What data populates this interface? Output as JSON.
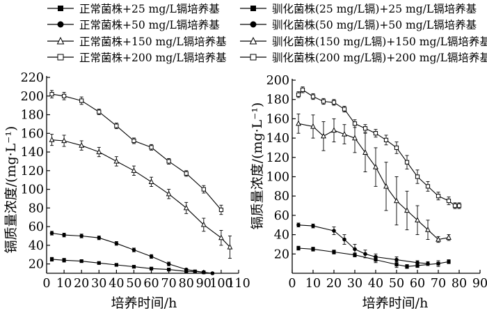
{
  "legend": [
    {
      "label": "正常菌株+25 mg/L镉培养基",
      "marker": "filled-square"
    },
    {
      "label": "驯化菌株(25 mg/L镉)+25 mg/L镉培养基",
      "marker": "filled-square"
    },
    {
      "label": "正常菌株+50 mg/L镉培养基",
      "marker": "filled-circle"
    },
    {
      "label": "驯化菌株(50 mg/L镉)+50 mg/L镉培养基",
      "marker": "filled-circle"
    },
    {
      "label": "正常菌株+150 mg/L镉培养基",
      "marker": "open-triangle"
    },
    {
      "label": "驯化菌株(150 mg/L镉)+150 mg/L镉培养基",
      "marker": "open-triangle"
    },
    {
      "label": "正常菌株+200 mg/L镉培养基",
      "marker": "open-square"
    },
    {
      "label": "驯化菌株(200 mg/L镉)+200 mg/L镉培养基",
      "marker": "open-square"
    }
  ],
  "chart_data": [
    {
      "type": "line",
      "xlabel": "培养时间/h",
      "ylabel": "镉质量浓度/(mg·L⁻¹)",
      "xlim": [
        0,
        110
      ],
      "ylim": [
        10,
        220
      ],
      "xticks": [
        0,
        10,
        20,
        30,
        40,
        50,
        60,
        70,
        80,
        90,
        100,
        110
      ],
      "xtick_labels": [
        "0",
        "10",
        "20",
        "30",
        "40",
        "50",
        "60",
        "70",
        "80",
        "90",
        "100",
        "110"
      ],
      "yticks": [
        20,
        40,
        60,
        80,
        100,
        120,
        140,
        160,
        180,
        200,
        220
      ],
      "series": [
        {
          "name": "正常菌株+25 mg/L镉培养基",
          "marker": "filled-square",
          "x": [
            3,
            10,
            20,
            30,
            40,
            50,
            60,
            70,
            80,
            85,
            90
          ],
          "y": [
            25,
            24,
            23,
            21,
            19,
            17,
            15,
            14,
            12,
            12,
            11
          ],
          "err": [
            2,
            2,
            1,
            1,
            1,
            1,
            1,
            1,
            1,
            1,
            1
          ]
        },
        {
          "name": "正常菌株+50 mg/L镉培养基",
          "marker": "filled-circle",
          "x": [
            3,
            10,
            20,
            30,
            40,
            50,
            60,
            70,
            80,
            90,
            95
          ],
          "y": [
            53,
            51,
            50,
            48,
            42,
            35,
            28,
            20,
            14,
            11,
            10
          ],
          "err": [
            2,
            2,
            2,
            2,
            2,
            2,
            2,
            2,
            1,
            1,
            1
          ]
        },
        {
          "name": "正常菌株+150 mg/L镉培养基",
          "marker": "open-triangle",
          "x": [
            3,
            10,
            20,
            30,
            40,
            50,
            60,
            70,
            80,
            90,
            100,
            105
          ],
          "y": [
            153,
            152,
            147,
            140,
            130,
            120,
            108,
            95,
            80,
            62,
            48,
            38
          ],
          "err": [
            6,
            6,
            5,
            5,
            5,
            5,
            5,
            5,
            6,
            7,
            8,
            12
          ]
        },
        {
          "name": "正常菌株+200 mg/L镉培养基",
          "marker": "open-square",
          "x": [
            3,
            10,
            20,
            30,
            40,
            50,
            60,
            70,
            80,
            90,
            100
          ],
          "y": [
            202,
            200,
            195,
            183,
            168,
            152,
            145,
            130,
            117,
            100,
            78
          ],
          "err": [
            4,
            4,
            4,
            3,
            3,
            3,
            3,
            3,
            3,
            4,
            5
          ]
        }
      ]
    },
    {
      "type": "line",
      "xlabel": "培养时间/h",
      "ylabel": "镉质量浓度/(mg·L⁻¹)",
      "xlim": [
        0,
        90
      ],
      "ylim": [
        0,
        200
      ],
      "xticks": [
        0,
        10,
        20,
        30,
        40,
        50,
        60,
        70,
        80,
        90
      ],
      "xtick_labels": [
        "0",
        "10",
        "20",
        "30",
        "40",
        "50",
        "60",
        "70",
        "80",
        "90"
      ],
      "yticks": [
        20,
        40,
        60,
        80,
        100,
        120,
        140,
        160,
        180,
        200
      ],
      "series": [
        {
          "name": "驯化菌株(25 mg/L镉)+25 mg/L镉培养基",
          "marker": "filled-square",
          "x": [
            3,
            10,
            20,
            30,
            40,
            50,
            55,
            60,
            70,
            75
          ],
          "y": [
            26,
            25,
            22,
            19,
            14,
            9,
            7,
            8,
            10,
            12
          ],
          "err": [
            2,
            2,
            2,
            2,
            3,
            3,
            2,
            2,
            3,
            2
          ]
        },
        {
          "name": "驯化菌株(50 mg/L镉)+50 mg/L镉培养基",
          "marker": "filled-circle",
          "x": [
            3,
            10,
            20,
            25,
            30,
            35,
            40,
            50,
            60,
            65
          ],
          "y": [
            50,
            49,
            44,
            35,
            25,
            20,
            17,
            14,
            11,
            10
          ],
          "err": [
            2,
            2,
            4,
            5,
            5,
            4,
            3,
            3,
            2,
            2
          ]
        },
        {
          "name": "驯化菌株(150 mg/L镉)+150 mg/L镉培养基",
          "marker": "open-triangle",
          "x": [
            3,
            10,
            15,
            20,
            25,
            30,
            35,
            40,
            45,
            50,
            55,
            60,
            65,
            70,
            75
          ],
          "y": [
            155,
            152,
            142,
            148,
            144,
            140,
            125,
            110,
            90,
            75,
            65,
            55,
            45,
            35,
            37
          ],
          "err": [
            10,
            12,
            15,
            12,
            10,
            15,
            20,
            20,
            25,
            25,
            20,
            15,
            10,
            3,
            3
          ]
        },
        {
          "name": "驯化菌株(200 mg/L镉)+200 mg/L镉培养基",
          "marker": "open-square",
          "x": [
            3,
            5,
            10,
            15,
            20,
            25,
            30,
            35,
            40,
            45,
            50,
            55,
            60,
            65,
            70,
            75,
            78,
            80
          ],
          "y": [
            185,
            190,
            183,
            178,
            177,
            170,
            155,
            150,
            145,
            138,
            130,
            115,
            100,
            90,
            80,
            75,
            70,
            70
          ],
          "err": [
            3,
            3,
            3,
            3,
            3,
            3,
            4,
            4,
            4,
            5,
            6,
            7,
            7,
            5,
            4,
            4,
            3,
            3
          ]
        }
      ]
    }
  ]
}
